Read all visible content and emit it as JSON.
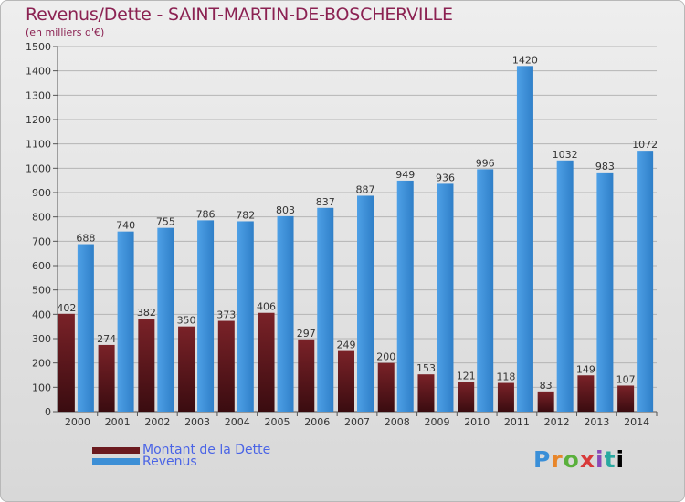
{
  "title": "Revenus/Dette - SAINT-MARTIN-DE-BOSCHERVILLE",
  "subtitle": "(en milliers d'€)",
  "logo_text": "Proxiti",
  "colors": {
    "dette": "#6b1a1f",
    "revenus": "#3d8fd6",
    "title": "#8b2252",
    "legend_text": "#4a64e6"
  },
  "chart_data": {
    "type": "bar",
    "categories": [
      "2000",
      "2001",
      "2002",
      "2003",
      "2004",
      "2005",
      "2006",
      "2007",
      "2008",
      "2009",
      "2010",
      "2011",
      "2012",
      "2013",
      "2014"
    ],
    "series": [
      {
        "name": "Montant de la Dette",
        "values": [
          402,
          274,
          382,
          350,
          373,
          406,
          297,
          249,
          200,
          153,
          121,
          118,
          83,
          149,
          107
        ]
      },
      {
        "name": "Revenus",
        "values": [
          688,
          740,
          755,
          786,
          782,
          803,
          837,
          887,
          949,
          936,
          996,
          1420,
          1032,
          983,
          1072
        ]
      }
    ],
    "yticks": [
      0,
      100,
      200,
      300,
      400,
      500,
      600,
      700,
      800,
      900,
      1000,
      1100,
      1200,
      1300,
      1400,
      1500
    ],
    "ylim": [
      0,
      1500
    ],
    "grid": true,
    "legend": "bottom-left"
  }
}
